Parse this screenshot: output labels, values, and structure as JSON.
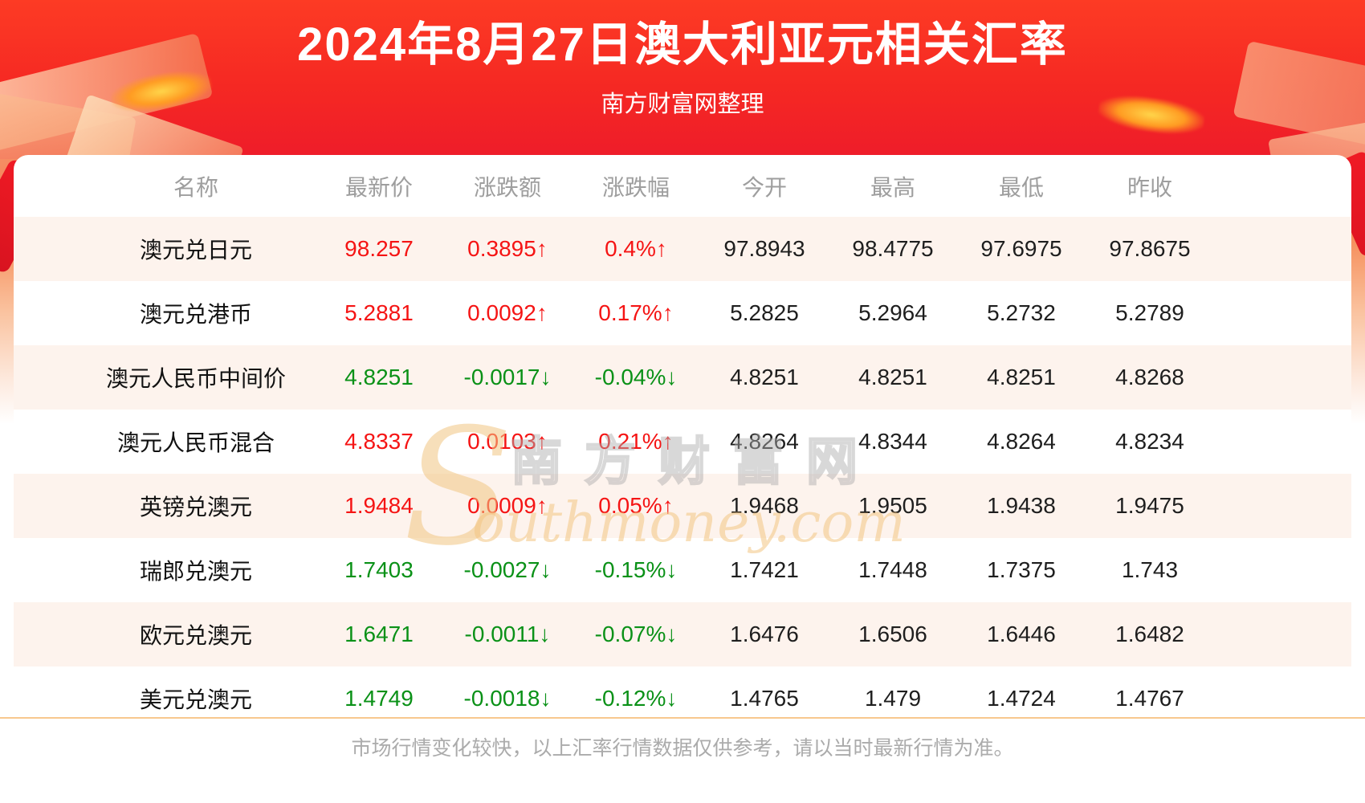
{
  "page": {
    "title": "2024年8月27日澳大利亚元相关汇率",
    "subtitle": "南方财富网整理",
    "footer_note": "市场行情变化较快，以上汇率行情数据仅供参考，请以当时最新行情为准。"
  },
  "watermark": {
    "initial": "S",
    "cn": "南方财富网",
    "en": "outhmoney.com"
  },
  "colors": {
    "banner_red_top": "#fd3b24",
    "banner_red_bottom": "#ee1c2a",
    "up_value": "#f51414",
    "down_value": "#0a9117",
    "row_alt_background": "#fdf3ed",
    "header_label_gray": "#9e9e9e",
    "divider_orange": "#f8c88f"
  },
  "table": {
    "columns": [
      "名称",
      "最新价",
      "涨跌额",
      "涨跌幅",
      "今开",
      "最高",
      "最低",
      "昨收"
    ],
    "rows": [
      {
        "name": "澳元兑日元",
        "latest": "98.257",
        "change": "0.3895↑",
        "change_pct": "0.4%↑",
        "open": "97.8943",
        "high": "98.4775",
        "low": "97.6975",
        "prev_close": "97.8675",
        "trend": "up"
      },
      {
        "name": "澳元兑港币",
        "latest": "5.2881",
        "change": "0.0092↑",
        "change_pct": "0.17%↑",
        "open": "5.2825",
        "high": "5.2964",
        "low": "5.2732",
        "prev_close": "5.2789",
        "trend": "up"
      },
      {
        "name": "澳元人民币中间价",
        "latest": "4.8251",
        "change": "-0.0017↓",
        "change_pct": "-0.04%↓",
        "open": "4.8251",
        "high": "4.8251",
        "low": "4.8251",
        "prev_close": "4.8268",
        "trend": "down"
      },
      {
        "name": "澳元人民币混合",
        "latest": "4.8337",
        "change": "0.0103↑",
        "change_pct": "0.21%↑",
        "open": "4.8264",
        "high": "4.8344",
        "low": "4.8264",
        "prev_close": "4.8234",
        "trend": "up"
      },
      {
        "name": "英镑兑澳元",
        "latest": "1.9484",
        "change": "0.0009↑",
        "change_pct": "0.05%↑",
        "open": "1.9468",
        "high": "1.9505",
        "low": "1.9438",
        "prev_close": "1.9475",
        "trend": "up"
      },
      {
        "name": "瑞郎兑澳元",
        "latest": "1.7403",
        "change": "-0.0027↓",
        "change_pct": "-0.15%↓",
        "open": "1.7421",
        "high": "1.7448",
        "low": "1.7375",
        "prev_close": "1.743",
        "trend": "down"
      },
      {
        "name": "欧元兑澳元",
        "latest": "1.6471",
        "change": "-0.0011↓",
        "change_pct": "-0.07%↓",
        "open": "1.6476",
        "high": "1.6506",
        "low": "1.6446",
        "prev_close": "1.6482",
        "trend": "down"
      },
      {
        "name": "美元兑澳元",
        "latest": "1.4749",
        "change": "-0.0018↓",
        "change_pct": "-0.12%↓",
        "open": "1.4765",
        "high": "1.479",
        "low": "1.4724",
        "prev_close": "1.4767",
        "trend": "down"
      }
    ]
  }
}
